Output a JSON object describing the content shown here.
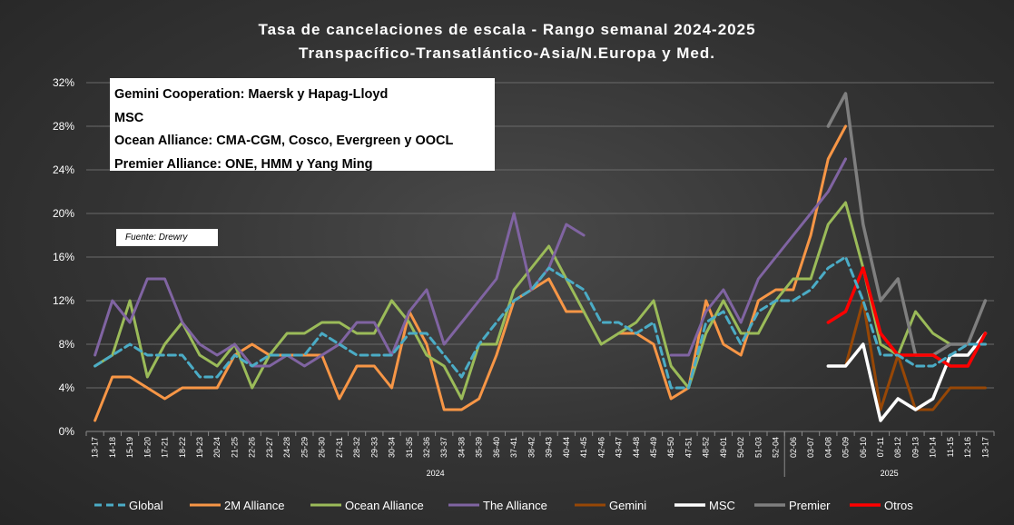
{
  "chart_data": {
    "type": "line",
    "title": "Tasa de cancelaciones de escala - Rango semanal 2024-2025",
    "subtitle": "Transpacífico-Transatlántico-Asia/N.Europa  y Med.",
    "annotation_lines": [
      "Gemini Cooperation: Maersk y Hapag-Lloyd",
      "MSC",
      "Ocean Alliance: CMA-CGM, Cosco, Evergreen y OOCL",
      "Premier Alliance: ONE, HMM y Yang Ming"
    ],
    "source": "Fuente: Drewry",
    "year_labels": [
      "2024",
      "2025"
    ],
    "ylim": [
      0,
      32
    ],
    "yticks": [
      "0%",
      "4%",
      "8%",
      "12%",
      "16%",
      "20%",
      "24%",
      "28%",
      "32%"
    ],
    "grid": true,
    "legend_position": "bottom",
    "x": [
      "13-17",
      "14-18",
      "15-19",
      "16-20",
      "17-21",
      "18-22",
      "19-23",
      "20-24",
      "21-25",
      "22-26",
      "23-27",
      "24-28",
      "25-29",
      "26-30",
      "27-31",
      "28-32",
      "29-33",
      "30-34",
      "31-35",
      "32-36",
      "33-37",
      "34-38",
      "35-39",
      "36-40",
      "37-41",
      "38-42",
      "39-43",
      "40-44",
      "41-45",
      "42-46",
      "43-47",
      "44-48",
      "45-49",
      "46-50",
      "47-51",
      "48-52",
      "49-01",
      "50-02",
      "51-03",
      "52-04",
      "02-06",
      "03-07",
      "04-08",
      "05-09",
      "06-10",
      "07-11",
      "08-12",
      "09-13",
      "10-14",
      "11-15",
      "12-16",
      "13-17"
    ],
    "series": [
      {
        "name": "Global",
        "color": "#4bacc6",
        "dash": true,
        "width": 3,
        "values": [
          6,
          7,
          8,
          7,
          7,
          7,
          5,
          5,
          7,
          6,
          7,
          7,
          7,
          9,
          8,
          7,
          7,
          7,
          9,
          9,
          7,
          5,
          8,
          10,
          12,
          13,
          15,
          14,
          13,
          10,
          10,
          9,
          10,
          4,
          4,
          10,
          11,
          8,
          11,
          12,
          12,
          13,
          15,
          16,
          12,
          7,
          7,
          6,
          6,
          7,
          8,
          8
        ]
      },
      {
        "name": "2M Alliance",
        "color": "#f79646",
        "width": 3,
        "values": [
          1,
          5,
          5,
          4,
          3,
          4,
          4,
          4,
          7,
          8,
          7,
          7,
          7,
          7,
          3,
          6,
          6,
          4,
          11,
          8,
          2,
          2,
          3,
          7,
          12,
          13,
          14,
          11,
          11,
          null,
          9,
          9,
          8,
          3,
          4,
          12,
          8,
          7,
          12,
          13,
          13,
          18,
          25,
          28,
          null,
          null,
          null,
          null,
          null,
          null,
          null,
          null
        ]
      },
      {
        "name": "Ocean Alliance",
        "color": "#9bbb59",
        "width": 3,
        "values": [
          6,
          7,
          12,
          5,
          8,
          10,
          7,
          6,
          8,
          4,
          7,
          9,
          9,
          10,
          10,
          9,
          9,
          12,
          10,
          7,
          6,
          3,
          8,
          8,
          13,
          15,
          17,
          14,
          11,
          8,
          9,
          10,
          12,
          6,
          4,
          9,
          12,
          9,
          9,
          12,
          14,
          14,
          19,
          21,
          15,
          8,
          7,
          11,
          9,
          8,
          8,
          8
        ]
      },
      {
        "name": "The Alliance",
        "color": "#8064a2",
        "width": 3,
        "values": [
          7,
          12,
          10,
          14,
          14,
          10,
          8,
          7,
          8,
          6,
          6,
          7,
          6,
          7,
          8,
          10,
          10,
          7,
          11,
          13,
          8,
          10,
          12,
          14,
          20,
          13,
          15,
          19,
          18,
          null,
          null,
          null,
          null,
          7,
          7,
          11,
          13,
          10,
          14,
          16,
          18,
          20,
          22,
          25,
          null,
          null,
          null,
          null,
          null,
          null,
          null,
          null
        ]
      },
      {
        "name": "Gemini",
        "color": "#974706",
        "width": 3,
        "values": [
          null,
          null,
          null,
          null,
          null,
          null,
          null,
          null,
          null,
          null,
          null,
          null,
          null,
          null,
          null,
          null,
          null,
          null,
          null,
          null,
          null,
          null,
          null,
          null,
          null,
          null,
          null,
          null,
          null,
          null,
          null,
          null,
          null,
          null,
          null,
          null,
          null,
          null,
          null,
          null,
          null,
          null,
          null,
          6,
          12,
          2,
          7,
          2,
          2,
          4,
          4,
          4
        ]
      },
      {
        "name": "MSC",
        "color": "#ffffff",
        "width": 3.5,
        "values": [
          null,
          null,
          null,
          null,
          null,
          null,
          null,
          null,
          null,
          null,
          null,
          null,
          null,
          null,
          null,
          null,
          null,
          null,
          null,
          null,
          null,
          null,
          null,
          null,
          null,
          null,
          null,
          null,
          null,
          null,
          null,
          null,
          null,
          null,
          null,
          null,
          null,
          null,
          null,
          null,
          null,
          null,
          6,
          6,
          8,
          1,
          3,
          2,
          3,
          7,
          7,
          9
        ]
      },
      {
        "name": "Premier",
        "color": "#7f7f7f",
        "width": 3.5,
        "values": [
          null,
          null,
          null,
          null,
          null,
          null,
          null,
          null,
          null,
          null,
          null,
          null,
          null,
          null,
          null,
          null,
          null,
          null,
          null,
          null,
          null,
          null,
          null,
          null,
          null,
          null,
          null,
          null,
          null,
          null,
          null,
          null,
          null,
          null,
          null,
          null,
          null,
          null,
          null,
          null,
          null,
          null,
          28,
          31,
          19,
          12,
          14,
          7,
          7,
          8,
          8,
          12
        ]
      },
      {
        "name": "Otros",
        "color": "#ff0000",
        "width": 3.5,
        "values": [
          null,
          null,
          null,
          null,
          null,
          null,
          null,
          null,
          null,
          null,
          null,
          null,
          null,
          null,
          null,
          null,
          null,
          null,
          null,
          null,
          null,
          null,
          null,
          null,
          null,
          null,
          null,
          null,
          null,
          null,
          null,
          null,
          null,
          null,
          null,
          null,
          null,
          null,
          null,
          null,
          null,
          null,
          10,
          11,
          15,
          9,
          7,
          7,
          7,
          6,
          6,
          9
        ]
      }
    ]
  }
}
